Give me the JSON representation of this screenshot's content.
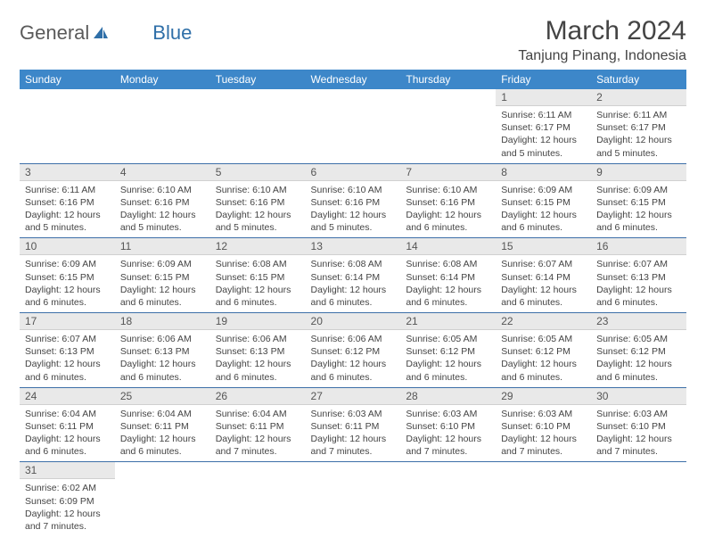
{
  "logo": {
    "text1": "General",
    "text2": "Blue"
  },
  "title": "March 2024",
  "location": "Tanjung Pinang, Indonesia",
  "colors": {
    "header_bg": "#3d87c9",
    "header_text": "#ffffff",
    "daynum_bg": "#e9e9e9",
    "row_border": "#3d6fa8",
    "logo_gray": "#5a5a5a",
    "logo_blue": "#2f6fa8"
  },
  "days_of_week": [
    "Sunday",
    "Monday",
    "Tuesday",
    "Wednesday",
    "Thursday",
    "Friday",
    "Saturday"
  ],
  "weeks": [
    [
      null,
      null,
      null,
      null,
      null,
      {
        "n": "1",
        "sr": "Sunrise: 6:11 AM",
        "ss": "Sunset: 6:17 PM",
        "dl": "Daylight: 12 hours and 5 minutes."
      },
      {
        "n": "2",
        "sr": "Sunrise: 6:11 AM",
        "ss": "Sunset: 6:17 PM",
        "dl": "Daylight: 12 hours and 5 minutes."
      }
    ],
    [
      {
        "n": "3",
        "sr": "Sunrise: 6:11 AM",
        "ss": "Sunset: 6:16 PM",
        "dl": "Daylight: 12 hours and 5 minutes."
      },
      {
        "n": "4",
        "sr": "Sunrise: 6:10 AM",
        "ss": "Sunset: 6:16 PM",
        "dl": "Daylight: 12 hours and 5 minutes."
      },
      {
        "n": "5",
        "sr": "Sunrise: 6:10 AM",
        "ss": "Sunset: 6:16 PM",
        "dl": "Daylight: 12 hours and 5 minutes."
      },
      {
        "n": "6",
        "sr": "Sunrise: 6:10 AM",
        "ss": "Sunset: 6:16 PM",
        "dl": "Daylight: 12 hours and 5 minutes."
      },
      {
        "n": "7",
        "sr": "Sunrise: 6:10 AM",
        "ss": "Sunset: 6:16 PM",
        "dl": "Daylight: 12 hours and 6 minutes."
      },
      {
        "n": "8",
        "sr": "Sunrise: 6:09 AM",
        "ss": "Sunset: 6:15 PM",
        "dl": "Daylight: 12 hours and 6 minutes."
      },
      {
        "n": "9",
        "sr": "Sunrise: 6:09 AM",
        "ss": "Sunset: 6:15 PM",
        "dl": "Daylight: 12 hours and 6 minutes."
      }
    ],
    [
      {
        "n": "10",
        "sr": "Sunrise: 6:09 AM",
        "ss": "Sunset: 6:15 PM",
        "dl": "Daylight: 12 hours and 6 minutes."
      },
      {
        "n": "11",
        "sr": "Sunrise: 6:09 AM",
        "ss": "Sunset: 6:15 PM",
        "dl": "Daylight: 12 hours and 6 minutes."
      },
      {
        "n": "12",
        "sr": "Sunrise: 6:08 AM",
        "ss": "Sunset: 6:15 PM",
        "dl": "Daylight: 12 hours and 6 minutes."
      },
      {
        "n": "13",
        "sr": "Sunrise: 6:08 AM",
        "ss": "Sunset: 6:14 PM",
        "dl": "Daylight: 12 hours and 6 minutes."
      },
      {
        "n": "14",
        "sr": "Sunrise: 6:08 AM",
        "ss": "Sunset: 6:14 PM",
        "dl": "Daylight: 12 hours and 6 minutes."
      },
      {
        "n": "15",
        "sr": "Sunrise: 6:07 AM",
        "ss": "Sunset: 6:14 PM",
        "dl": "Daylight: 12 hours and 6 minutes."
      },
      {
        "n": "16",
        "sr": "Sunrise: 6:07 AM",
        "ss": "Sunset: 6:13 PM",
        "dl": "Daylight: 12 hours and 6 minutes."
      }
    ],
    [
      {
        "n": "17",
        "sr": "Sunrise: 6:07 AM",
        "ss": "Sunset: 6:13 PM",
        "dl": "Daylight: 12 hours and 6 minutes."
      },
      {
        "n": "18",
        "sr": "Sunrise: 6:06 AM",
        "ss": "Sunset: 6:13 PM",
        "dl": "Daylight: 12 hours and 6 minutes."
      },
      {
        "n": "19",
        "sr": "Sunrise: 6:06 AM",
        "ss": "Sunset: 6:13 PM",
        "dl": "Daylight: 12 hours and 6 minutes."
      },
      {
        "n": "20",
        "sr": "Sunrise: 6:06 AM",
        "ss": "Sunset: 6:12 PM",
        "dl": "Daylight: 12 hours and 6 minutes."
      },
      {
        "n": "21",
        "sr": "Sunrise: 6:05 AM",
        "ss": "Sunset: 6:12 PM",
        "dl": "Daylight: 12 hours and 6 minutes."
      },
      {
        "n": "22",
        "sr": "Sunrise: 6:05 AM",
        "ss": "Sunset: 6:12 PM",
        "dl": "Daylight: 12 hours and 6 minutes."
      },
      {
        "n": "23",
        "sr": "Sunrise: 6:05 AM",
        "ss": "Sunset: 6:12 PM",
        "dl": "Daylight: 12 hours and 6 minutes."
      }
    ],
    [
      {
        "n": "24",
        "sr": "Sunrise: 6:04 AM",
        "ss": "Sunset: 6:11 PM",
        "dl": "Daylight: 12 hours and 6 minutes."
      },
      {
        "n": "25",
        "sr": "Sunrise: 6:04 AM",
        "ss": "Sunset: 6:11 PM",
        "dl": "Daylight: 12 hours and 6 minutes."
      },
      {
        "n": "26",
        "sr": "Sunrise: 6:04 AM",
        "ss": "Sunset: 6:11 PM",
        "dl": "Daylight: 12 hours and 7 minutes."
      },
      {
        "n": "27",
        "sr": "Sunrise: 6:03 AM",
        "ss": "Sunset: 6:11 PM",
        "dl": "Daylight: 12 hours and 7 minutes."
      },
      {
        "n": "28",
        "sr": "Sunrise: 6:03 AM",
        "ss": "Sunset: 6:10 PM",
        "dl": "Daylight: 12 hours and 7 minutes."
      },
      {
        "n": "29",
        "sr": "Sunrise: 6:03 AM",
        "ss": "Sunset: 6:10 PM",
        "dl": "Daylight: 12 hours and 7 minutes."
      },
      {
        "n": "30",
        "sr": "Sunrise: 6:03 AM",
        "ss": "Sunset: 6:10 PM",
        "dl": "Daylight: 12 hours and 7 minutes."
      }
    ],
    [
      {
        "n": "31",
        "sr": "Sunrise: 6:02 AM",
        "ss": "Sunset: 6:09 PM",
        "dl": "Daylight: 12 hours and 7 minutes."
      },
      null,
      null,
      null,
      null,
      null,
      null
    ]
  ]
}
